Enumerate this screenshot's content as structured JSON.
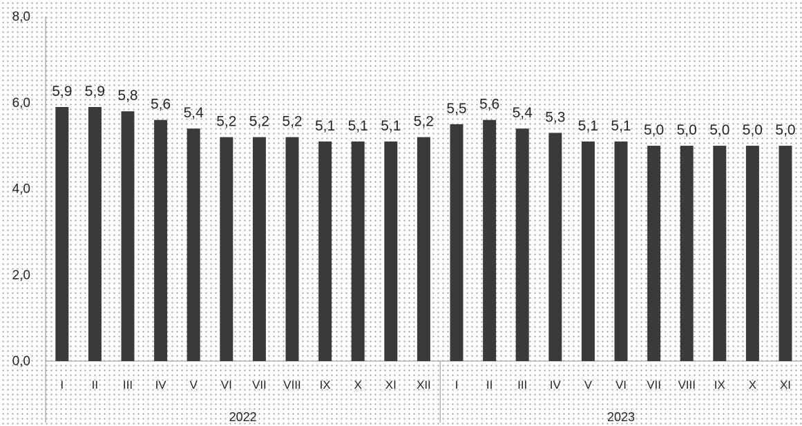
{
  "chart_data": {
    "type": "bar",
    "title": "",
    "xlabel": "",
    "ylabel": "",
    "ylim": [
      0,
      8
    ],
    "yticks": [
      "0,0",
      "2,0",
      "4,0",
      "6,0",
      "8,0"
    ],
    "ytick_values": [
      0,
      2,
      4,
      6,
      8
    ],
    "grid": false,
    "legend": "none",
    "bar_color": "#3a3a3a",
    "axis_color": "#a6a6a6",
    "groups": [
      {
        "label": "2022",
        "categories": [
          "I",
          "II",
          "III",
          "IV",
          "V",
          "VI",
          "VII",
          "VIII",
          "IX",
          "X",
          "XI",
          "XII"
        ],
        "values": [
          5.9,
          5.9,
          5.8,
          5.6,
          5.4,
          5.2,
          5.2,
          5.2,
          5.1,
          5.1,
          5.1,
          5.2
        ],
        "value_labels": [
          "5,9",
          "5,9",
          "5,8",
          "5,6",
          "5,4",
          "5,2",
          "5,2",
          "5,2",
          "5,1",
          "5,1",
          "5,1",
          "5,2"
        ]
      },
      {
        "label": "2023",
        "categories": [
          "I",
          "II",
          "III",
          "IV",
          "V",
          "VI",
          "VII",
          "VIII",
          "IX",
          "X",
          "XI"
        ],
        "values": [
          5.5,
          5.6,
          5.4,
          5.3,
          5.1,
          5.1,
          5.0,
          5.0,
          5.0,
          5.0,
          5.0
        ],
        "value_labels": [
          "5,5",
          "5,6",
          "5,4",
          "5,3",
          "5,1",
          "5,1",
          "5,0",
          "5,0",
          "5,0",
          "5,0",
          "5,0"
        ]
      }
    ]
  }
}
